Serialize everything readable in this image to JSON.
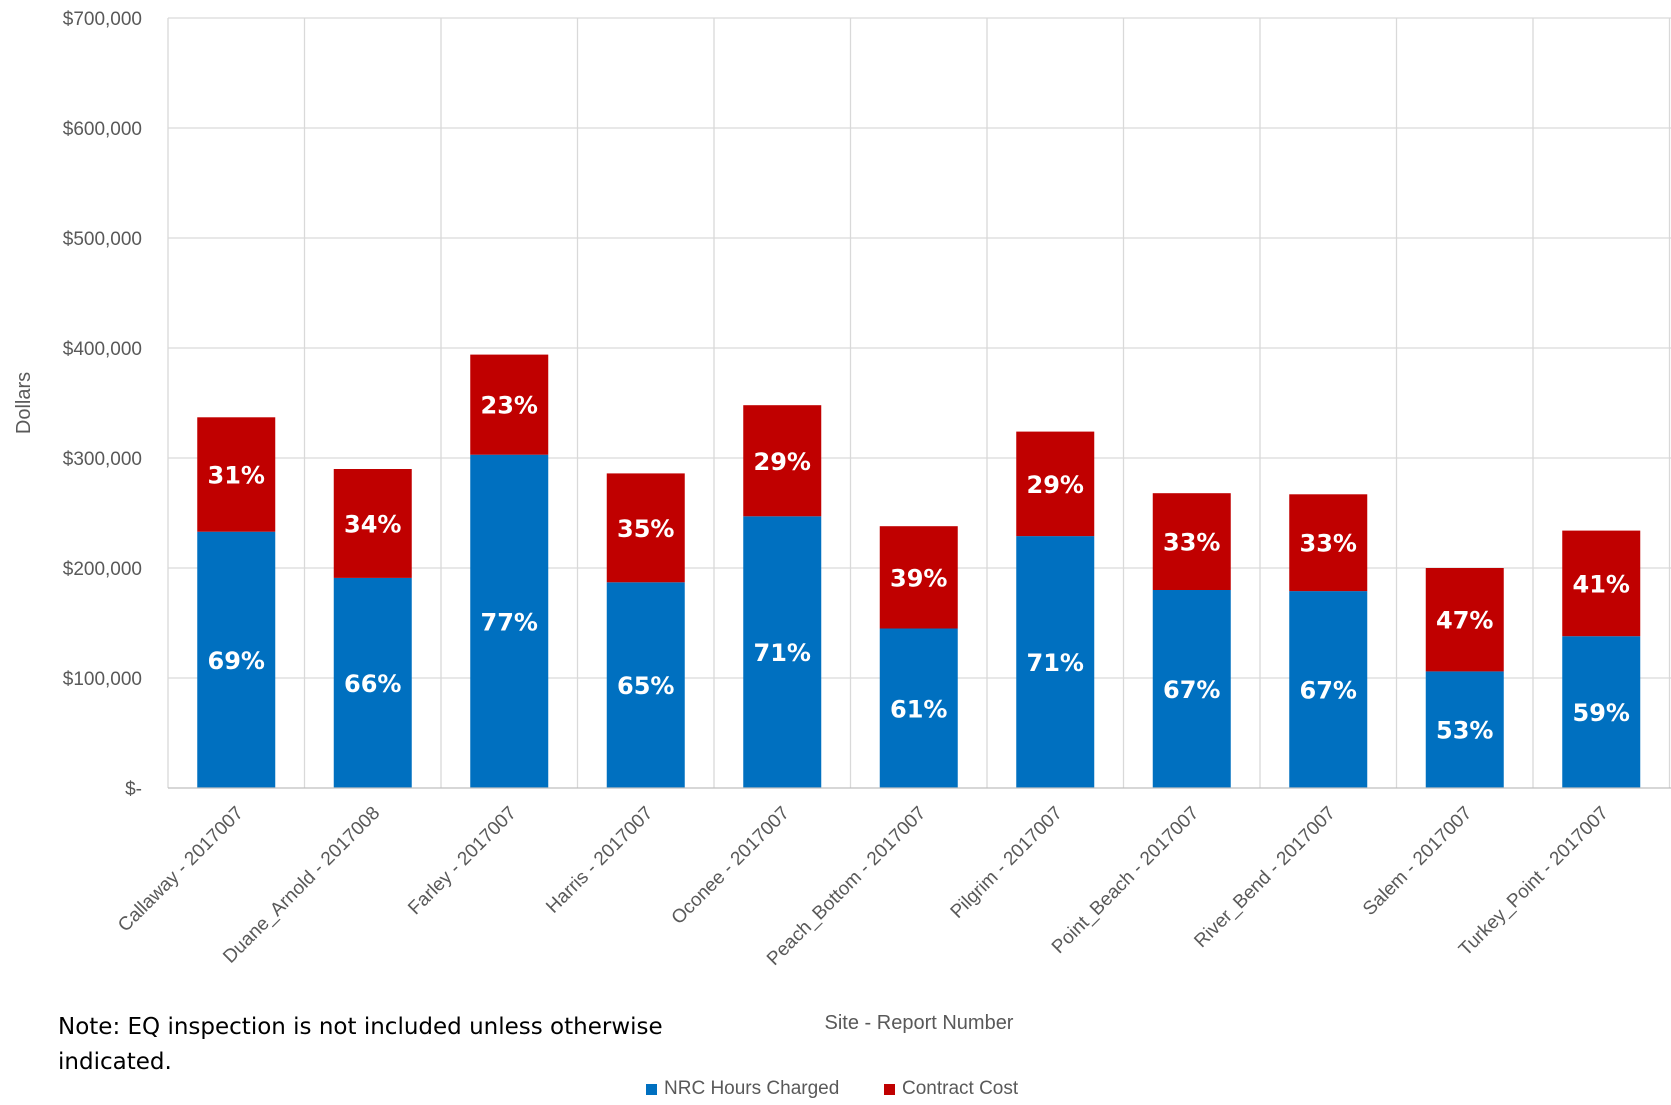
{
  "chart_data": {
    "type": "bar",
    "stacked": true,
    "categories": [
      "Callaway - 2017007",
      "Duane_Arnold - 2017008",
      "Farley - 2017007",
      "Harris - 2017007",
      "Oconee - 2017007",
      "Peach_Bottom - 2017007",
      "Pilgrim - 2017007",
      "Point_Beach - 2017007",
      "River_Bend - 2017007",
      "Salem - 2017007",
      "Turkey_Point - 2017007"
    ],
    "series": [
      {
        "name": "NRC Hours Charged",
        "color": "#0070C0",
        "values": [
          233000,
          191000,
          303000,
          187000,
          247000,
          145000,
          229000,
          180000,
          179000,
          106000,
          138000
        ],
        "labels": [
          "69%",
          "66%",
          "77%",
          "65%",
          "71%",
          "61%",
          "71%",
          "67%",
          "67%",
          "53%",
          "59%"
        ]
      },
      {
        "name": "Contract Cost",
        "color": "#C00000",
        "values": [
          104000,
          99000,
          91000,
          99000,
          101000,
          93000,
          95000,
          88000,
          88000,
          94000,
          96000
        ],
        "labels": [
          "31%",
          "34%",
          "23%",
          "35%",
          "29%",
          "39%",
          "29%",
          "33%",
          "33%",
          "47%",
          "41%"
        ]
      }
    ],
    "xlabel": "Site - Report Number",
    "ylabel": "Dollars",
    "ylim": [
      0,
      700000
    ],
    "yticks": [
      0,
      100000,
      200000,
      300000,
      400000,
      500000,
      600000,
      700000
    ],
    "ytick_labels": [
      "$-",
      "$100,000",
      "$200,000",
      "$300,000",
      "$400,000",
      "$500,000",
      "$600,000",
      "$700,000"
    ],
    "grid": true,
    "legend_position": "bottom"
  },
  "note": "Note: EQ inspection is not included unless otherwise indicated."
}
